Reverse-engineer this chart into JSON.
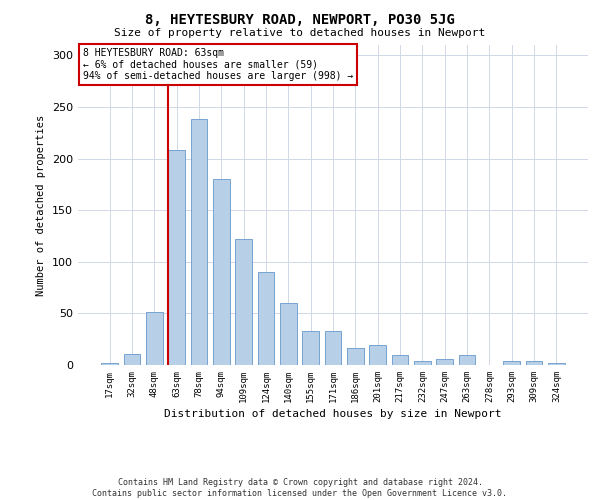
{
  "title": "8, HEYTESBURY ROAD, NEWPORT, PO30 5JG",
  "subtitle": "Size of property relative to detached houses in Newport",
  "xlabel": "Distribution of detached houses by size in Newport",
  "ylabel": "Number of detached properties",
  "footer_line1": "Contains HM Land Registry data © Crown copyright and database right 2024.",
  "footer_line2": "Contains public sector information licensed under the Open Government Licence v3.0.",
  "annotation_line1": "8 HEYTESBURY ROAD: 63sqm",
  "annotation_line2": "← 6% of detached houses are smaller (59)",
  "annotation_line3": "94% of semi-detached houses are larger (998) →",
  "bar_categories": [
    "17sqm",
    "32sqm",
    "48sqm",
    "63sqm",
    "78sqm",
    "94sqm",
    "109sqm",
    "124sqm",
    "140sqm",
    "155sqm",
    "171sqm",
    "186sqm",
    "201sqm",
    "217sqm",
    "232sqm",
    "247sqm",
    "263sqm",
    "278sqm",
    "293sqm",
    "309sqm",
    "324sqm"
  ],
  "bar_values": [
    2,
    11,
    51,
    208,
    238,
    180,
    122,
    90,
    60,
    33,
    33,
    16,
    19,
    10,
    4,
    6,
    10,
    0,
    4,
    4,
    2
  ],
  "bar_color": "#b8cfe8",
  "bar_edge_color": "#6699cc",
  "red_line_index": 3,
  "red_line_color": "#cc0000",
  "annotation_box_edge_color": "#cc0000",
  "annotation_box_face_color": "#ffffff",
  "background_color": "#ffffff",
  "grid_color": "#d0d8e8",
  "ylim": [
    0,
    310
  ],
  "yticks": [
    0,
    50,
    100,
    150,
    200,
    250,
    300
  ]
}
